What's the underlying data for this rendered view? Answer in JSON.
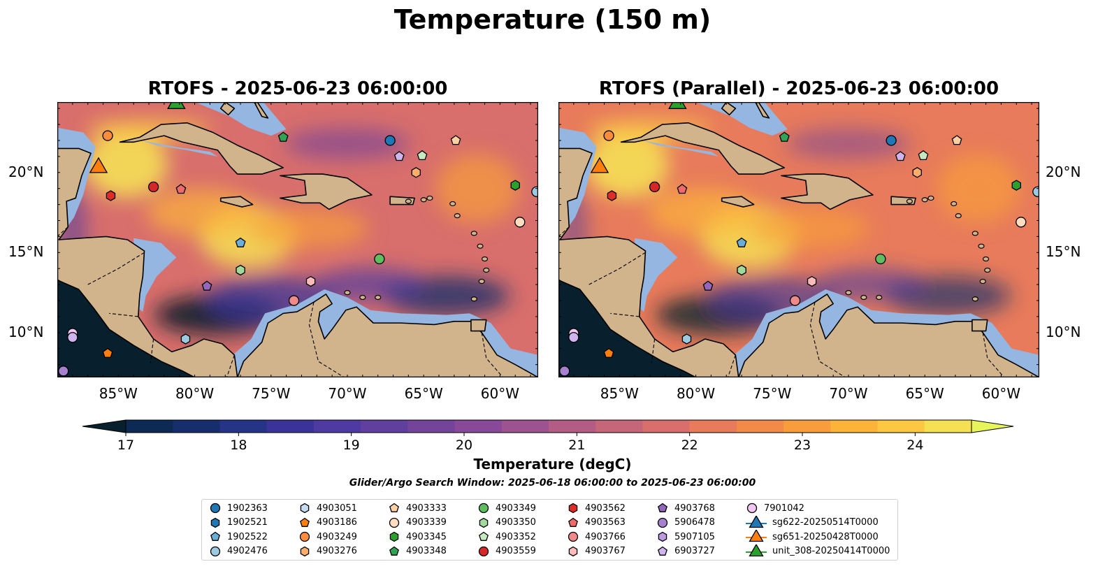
{
  "figure": {
    "title": "Temperature (150 m)",
    "colors": {
      "land": "#d2b48c",
      "shallow_water": "#95b6e0",
      "deep_land_mask": "#08202e"
    }
  },
  "panels": [
    {
      "title": "RTOFS - 2025-06-23 06:00:00"
    },
    {
      "title": "RTOFS (Parallel) - 2025-06-23 06:00:00"
    }
  ],
  "axes": {
    "lon_labels": [
      "85°W",
      "80°W",
      "75°W",
      "70°W",
      "65°W",
      "60°W"
    ],
    "lon_values": [
      -85,
      -80,
      -75,
      -70,
      -65,
      -60
    ],
    "lat_labels": [
      "20°N",
      "15°N",
      "10°N"
    ],
    "lat_values": [
      20,
      15,
      10
    ],
    "lon_range": [
      -89,
      -57.5
    ],
    "lat_range": [
      7.2,
      24.4
    ]
  },
  "colorbar": {
    "title": "Temperature (degC)",
    "tick_labels": [
      "17",
      "18",
      "19",
      "20",
      "21",
      "22",
      "23",
      "24"
    ],
    "range": [
      17,
      24.5
    ],
    "step": 0.5,
    "colors": [
      "#0d2a55",
      "#162e6b",
      "#263487",
      "#3a349a",
      "#4e3aa0",
      "#613f9e",
      "#74439a",
      "#884a98",
      "#9c5390",
      "#b35d84",
      "#c56679",
      "#d86f6c",
      "#e77b5c",
      "#f28a4a",
      "#f89d3c",
      "#fcb33a",
      "#fcc843",
      "#f5e054"
    ],
    "under_color": "#08202e",
    "over_color": "#e8f55a"
  },
  "search_window": "Glider/Argo Search Window: 2025-06-18 06:00:00 to 2025-06-23 06:00:00",
  "legend": {
    "entries": [
      {
        "label": "1902363",
        "marker": "circle",
        "color": "#1f77b4"
      },
      {
        "label": "1902521",
        "marker": "hexagon",
        "color": "#1f77b4"
      },
      {
        "label": "1902522",
        "marker": "pentagon",
        "color": "#6baed6"
      },
      {
        "label": "4902476",
        "marker": "circle",
        "color": "#9ecae1"
      },
      {
        "label": "4903051",
        "marker": "hexagon",
        "color": "#c6dbef"
      },
      {
        "label": "4903186",
        "marker": "pentagon",
        "color": "#ff7f0e"
      },
      {
        "label": "4903249",
        "marker": "circle",
        "color": "#fd8d3c"
      },
      {
        "label": "4903276",
        "marker": "hexagon",
        "color": "#fdae6b"
      },
      {
        "label": "4903333",
        "marker": "pentagon",
        "color": "#fdd0a2"
      },
      {
        "label": "4903339",
        "marker": "circle",
        "color": "#feddc0"
      },
      {
        "label": "4903345",
        "marker": "hexagon",
        "color": "#2ca02c"
      },
      {
        "label": "4903348",
        "marker": "pentagon",
        "color": "#31a354"
      },
      {
        "label": "4903349",
        "marker": "circle",
        "color": "#5fbf5f"
      },
      {
        "label": "4903350",
        "marker": "hexagon",
        "color": "#a1d99b"
      },
      {
        "label": "4903352",
        "marker": "pentagon",
        "color": "#c7e9c0"
      },
      {
        "label": "4903559",
        "marker": "circle",
        "color": "#d62728"
      },
      {
        "label": "4903562",
        "marker": "hexagon",
        "color": "#de2d26"
      },
      {
        "label": "4903563",
        "marker": "pentagon",
        "color": "#ef6a6a"
      },
      {
        "label": "4903766",
        "marker": "circle",
        "color": "#f08a8a"
      },
      {
        "label": "4903767",
        "marker": "hexagon",
        "color": "#fcbbbb"
      },
      {
        "label": "4903768",
        "marker": "pentagon",
        "color": "#9467bd"
      },
      {
        "label": "5906478",
        "marker": "circle",
        "color": "#a781cf"
      },
      {
        "label": "5907105",
        "marker": "hexagon",
        "color": "#bc9ce0"
      },
      {
        "label": "6903727",
        "marker": "pentagon",
        "color": "#d0b4ee"
      },
      {
        "label": "7901042",
        "marker": "circle",
        "color": "#f2c7f2"
      },
      {
        "label": "sg622-20250514T0000",
        "marker": "triangle",
        "color": "#1f77b4"
      },
      {
        "label": "sg651-20250428T0000",
        "marker": "triangle",
        "color": "#ff7f0e"
      },
      {
        "label": "unit_308-20250414T0000",
        "marker": "triangle",
        "color": "#2ca02c"
      }
    ]
  },
  "markers": [
    {
      "marker": "circle",
      "color": "#fd8d3c",
      "lon": -85.7,
      "lat": 22.3
    },
    {
      "marker": "triangle",
      "color": "#ff7f0e",
      "lon": -86.3,
      "lat": 20.3
    },
    {
      "marker": "triangle",
      "color": "#2ca02c",
      "lon": -81.2,
      "lat": 24.3
    },
    {
      "marker": "circle",
      "color": "#d62728",
      "lon": -82.7,
      "lat": 19.1
    },
    {
      "marker": "pentagon",
      "color": "#ef6a6a",
      "lon": -80.9,
      "lat": 18.95
    },
    {
      "marker": "hexagon",
      "color": "#de2d26",
      "lon": -85.5,
      "lat": 18.55
    },
    {
      "marker": "pentagon",
      "color": "#31a354",
      "lon": -74.2,
      "lat": 22.2
    },
    {
      "marker": "circle",
      "color": "#1f77b4",
      "lon": -67.2,
      "lat": 22.0
    },
    {
      "marker": "pentagon",
      "color": "#d0b4ee",
      "lon": -66.6,
      "lat": 21.0
    },
    {
      "marker": "pentagon",
      "color": "#c7e9c0",
      "lon": -65.1,
      "lat": 21.05
    },
    {
      "marker": "pentagon",
      "color": "#fdd0a2",
      "lon": -62.9,
      "lat": 22.0
    },
    {
      "marker": "hexagon",
      "color": "#fdae6b",
      "lon": -65.5,
      "lat": 20.0
    },
    {
      "marker": "hexagon",
      "color": "#2ca02c",
      "lon": -59.0,
      "lat": 19.2
    },
    {
      "marker": "circle",
      "color": "#9ecae1",
      "lon": -57.6,
      "lat": 18.8
    },
    {
      "marker": "circle",
      "color": "#feddc0",
      "lon": -58.7,
      "lat": 16.9
    },
    {
      "marker": "pentagon",
      "color": "#6baed6",
      "lon": -77.0,
      "lat": 15.6
    },
    {
      "marker": "hexagon",
      "color": "#a1d99b",
      "lon": -77.0,
      "lat": 13.9
    },
    {
      "marker": "circle",
      "color": "#5fbf5f",
      "lon": -67.9,
      "lat": 14.6
    },
    {
      "marker": "pentagon",
      "color": "#9467bd",
      "lon": -79.2,
      "lat": 12.9
    },
    {
      "marker": "hexagon",
      "color": "#fcbbbb",
      "lon": -72.4,
      "lat": 13.2
    },
    {
      "marker": "circle",
      "color": "#f08a8a",
      "lon": -73.5,
      "lat": 12.0
    },
    {
      "marker": "hexagon",
      "color": "#9ecae1",
      "lon": -80.6,
      "lat": 9.6
    },
    {
      "marker": "circle",
      "color": "#f2c7f2",
      "lon": -88.0,
      "lat": 9.95
    },
    {
      "marker": "circle",
      "color": "#d0b4ee",
      "lon": -88.0,
      "lat": 9.7
    },
    {
      "marker": "pentagon",
      "color": "#ff7f0e",
      "lon": -85.7,
      "lat": 8.7
    },
    {
      "marker": "circle",
      "color": "#a781cf",
      "lon": -88.6,
      "lat": 7.6
    }
  ]
}
